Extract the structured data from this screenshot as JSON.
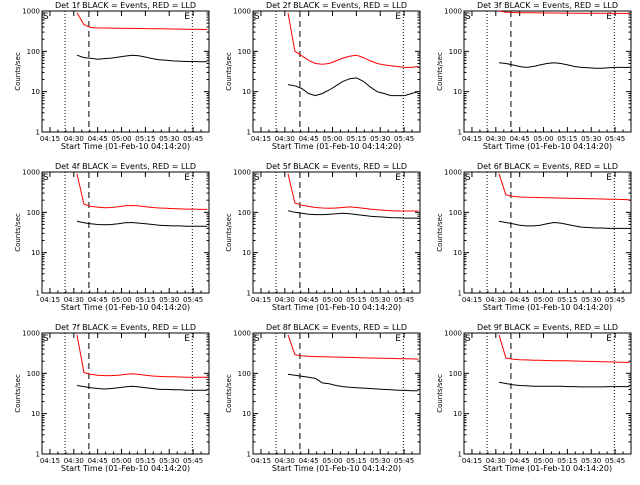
{
  "chart_data": [
    {
      "type": "line",
      "title": "Det 1f BLACK = Events, RED = LLD",
      "red": [
        900,
        460,
        390,
        380,
        378,
        376,
        374,
        372,
        370,
        368,
        366,
        364,
        362,
        360,
        358,
        356,
        354,
        352,
        350,
        348
      ],
      "black": [
        80,
        70,
        67,
        64,
        66,
        68,
        72,
        76,
        80,
        78,
        72,
        66,
        62,
        60,
        58,
        57,
        56,
        56,
        55,
        55
      ]
    },
    {
      "type": "line",
      "title": "Det 2f BLACK = Events, RED = LLD",
      "red": [
        900,
        100,
        78,
        60,
        50,
        48,
        50,
        58,
        68,
        76,
        80,
        70,
        58,
        50,
        46,
        44,
        42,
        40,
        40,
        42
      ],
      "black": [
        15,
        14,
        12,
        9,
        8,
        9,
        11,
        14,
        18,
        21,
        22,
        18,
        13,
        10,
        9,
        8,
        8,
        8,
        9,
        10
      ]
    },
    {
      "type": "line",
      "title": "Det 3f BLACK = Events, RED = LLD",
      "red": [
        1000,
        940,
        920,
        910,
        905,
        900,
        896,
        892,
        890,
        888,
        886,
        884,
        882,
        880,
        878,
        876,
        874,
        872,
        870,
        868
      ],
      "black": [
        52,
        50,
        46,
        42,
        40,
        42,
        46,
        50,
        52,
        50,
        46,
        42,
        40,
        39,
        38,
        38,
        39,
        40,
        40,
        40
      ]
    },
    {
      "type": "line",
      "title": "Det 4f BLACK = Events, RED = LLD",
      "red": [
        900,
        160,
        140,
        135,
        130,
        132,
        138,
        145,
        148,
        144,
        138,
        132,
        128,
        126,
        124,
        122,
        120,
        120,
        118,
        118
      ],
      "black": [
        60,
        55,
        52,
        50,
        49,
        50,
        52,
        55,
        56,
        54,
        52,
        50,
        48,
        47,
        46,
        46,
        45,
        45,
        45,
        45
      ]
    },
    {
      "type": "line",
      "title": "Det 5f BLACK = Events, RED = LLD",
      "red": [
        900,
        170,
        150,
        140,
        132,
        128,
        126,
        128,
        132,
        136,
        132,
        126,
        120,
        116,
        112,
        110,
        108,
        108,
        108,
        108
      ],
      "black": [
        110,
        100,
        95,
        90,
        88,
        88,
        90,
        92,
        95,
        92,
        88,
        84,
        80,
        78,
        76,
        74,
        73,
        72,
        72,
        72
      ]
    },
    {
      "type": "line",
      "title": "Det 6f BLACK = Events, RED = LLD",
      "red": [
        900,
        270,
        250,
        240,
        236,
        234,
        232,
        230,
        228,
        226,
        224,
        222,
        220,
        218,
        216,
        214,
        212,
        210,
        208,
        206
      ],
      "black": [
        60,
        56,
        52,
        48,
        46,
        46,
        48,
        52,
        56,
        54,
        50,
        46,
        43,
        42,
        41,
        41,
        40,
        40,
        40,
        40
      ]
    },
    {
      "type": "line",
      "title": "Det 7f BLACK = Events, RED = LLD",
      "red": [
        900,
        105,
        95,
        90,
        88,
        88,
        90,
        94,
        98,
        94,
        90,
        86,
        84,
        82,
        82,
        81,
        80,
        80,
        80,
        80
      ],
      "black": [
        50,
        47,
        44,
        42,
        41,
        42,
        44,
        46,
        48,
        46,
        44,
        42,
        40,
        40,
        39,
        39,
        38,
        38,
        38,
        38
      ]
    },
    {
      "type": "line",
      "title": "Det 8f BLACK = Events, RED = LLD",
      "red": [
        900,
        290,
        270,
        265,
        262,
        258,
        255,
        252,
        250,
        248,
        245,
        242,
        240,
        238,
        236,
        234,
        232,
        230,
        228,
        226
      ],
      "black": [
        95,
        90,
        85,
        80,
        75,
        58,
        55,
        50,
        47,
        45,
        44,
        43,
        42,
        41,
        40,
        39,
        38,
        38,
        37,
        37
      ]
    },
    {
      "type": "line",
      "title": "Det 9f BLACK = Events, RED = LLD",
      "red": [
        900,
        240,
        225,
        218,
        215,
        212,
        210,
        208,
        206,
        205,
        204,
        202,
        200,
        198,
        196,
        194,
        192,
        190,
        188,
        186
      ],
      "black": [
        60,
        56,
        52,
        50,
        49,
        48,
        48,
        48,
        48,
        48,
        47,
        47,
        46,
        46,
        46,
        46,
        47,
        47,
        47,
        47
      ]
    }
  ],
  "ylabel": "Counts/sec",
  "xlabel": "Start Time (01-Feb-10 04:14:20)",
  "yticks": [
    "1",
    "10",
    "100",
    "1000"
  ],
  "xticks": [
    "04:15",
    "04:30",
    "04:45",
    "05:00",
    "05:15",
    "05:30",
    "05:45"
  ],
  "start_marker": "S",
  "end_marker": "E",
  "colors": {
    "events": "#000000",
    "lld": "#ff0000"
  },
  "yscale": "log",
  "ylim": [
    1,
    1000
  ]
}
